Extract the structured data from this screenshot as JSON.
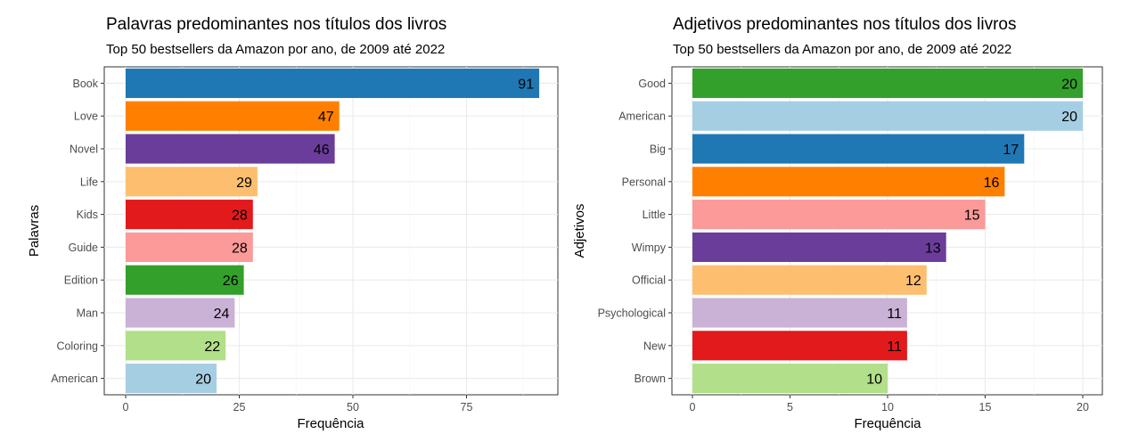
{
  "charts": [
    {
      "title": "Palavras predominantes nos títulos dos livros",
      "subtitle": "Top 50 bestsellers da Amazon por ano, de 2009 até 2022",
      "xlabel": "Frequência",
      "ylabel": "Palavras"
    },
    {
      "title": "Adjetivos predominantes nos títulos dos livros",
      "subtitle": "Top 50 bestsellers da Amazon por ano, de 2009 até 2022",
      "xlabel": "Frequência",
      "ylabel": "Adjetivos"
    }
  ],
  "chart_data": [
    {
      "type": "bar",
      "orientation": "horizontal",
      "title": "Palavras predominantes nos títulos dos livros",
      "subtitle": "Top 50 bestsellers da Amazon por ano, de 2009 até 2022",
      "xlabel": "Frequência",
      "ylabel": "Palavras",
      "categories": [
        "Book",
        "Love",
        "Novel",
        "Life",
        "Kids",
        "Guide",
        "Edition",
        "Man",
        "Coloring",
        "American"
      ],
      "values": [
        91,
        47,
        46,
        29,
        28,
        28,
        26,
        24,
        22,
        20
      ],
      "colors": [
        "#1f78b4",
        "#ff7f00",
        "#6a3d9a",
        "#fdbf6f",
        "#e31a1c",
        "#fb9a99",
        "#33a02c",
        "#cab2d6",
        "#b2df8a",
        "#a6cee3"
      ],
      "xlim": [
        0,
        95
      ],
      "xticks": [
        0,
        25,
        50,
        75
      ],
      "grid": true,
      "data_labels": true
    },
    {
      "type": "bar",
      "orientation": "horizontal",
      "title": "Adjetivos predominantes nos títulos dos livros",
      "subtitle": "Top 50 bestsellers da Amazon por ano, de 2009 até 2022",
      "xlabel": "Frequência",
      "ylabel": "Adjetivos",
      "categories": [
        "Good",
        "American",
        "Big",
        "Personal",
        "Little",
        "Wimpy",
        "Official",
        "Psychological",
        "New",
        "Brown"
      ],
      "values": [
        20,
        20,
        17,
        16,
        15,
        13,
        12,
        11,
        11,
        10
      ],
      "colors": [
        "#33a02c",
        "#a6cee3",
        "#1f78b4",
        "#ff7f00",
        "#fb9a99",
        "#6a3d9a",
        "#fdbf6f",
        "#cab2d6",
        "#e31a1c",
        "#b2df8a"
      ],
      "xlim": [
        0,
        21
      ],
      "xticks": [
        0,
        5,
        10,
        15,
        20
      ],
      "grid": true,
      "data_labels": true
    }
  ]
}
